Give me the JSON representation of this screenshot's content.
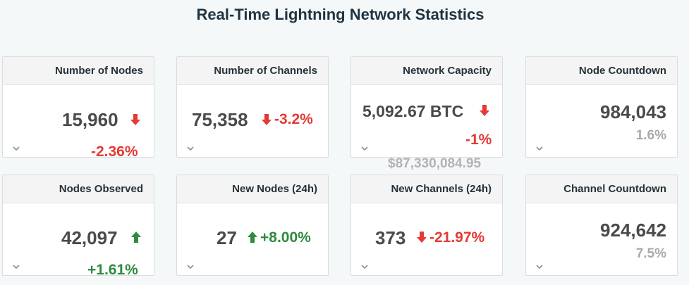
{
  "page": {
    "title": "Real-Time Lightning Network Statistics"
  },
  "cards": [
    {
      "label": "Number of Nodes",
      "value": "15,960",
      "change": "-2.36%",
      "trend": "down"
    },
    {
      "label": "Number of Channels",
      "value": "75,358",
      "change": "-3.2%",
      "trend": "down"
    },
    {
      "label": "Network Capacity",
      "value": "5,092.67 BTC",
      "change": "-1%",
      "trend": "down",
      "secondary": "$87,330,084.95"
    },
    {
      "label": "Node Countdown",
      "value": "984,043",
      "change": "1.6%",
      "trend": "none"
    },
    {
      "label": "Nodes Observed",
      "value": "42,097",
      "change": "+1.61%",
      "trend": "up"
    },
    {
      "label": "New Nodes (24h)",
      "value": "27",
      "change": "+8.00%",
      "trend": "up"
    },
    {
      "label": "New Channels (24h)",
      "value": "373",
      "change": "-21.97%",
      "trend": "down"
    },
    {
      "label": "Channel Countdown",
      "value": "924,642",
      "change": "7.5%",
      "trend": "none"
    }
  ],
  "icons": {
    "down": "arrow-down-icon",
    "up": "arrow-up-icon",
    "expand": "chevron-down-icon"
  },
  "colors": {
    "down": "#e53935",
    "up": "#2e8b3e",
    "neutral": "#a9a9a9",
    "title": "#1f3442"
  }
}
